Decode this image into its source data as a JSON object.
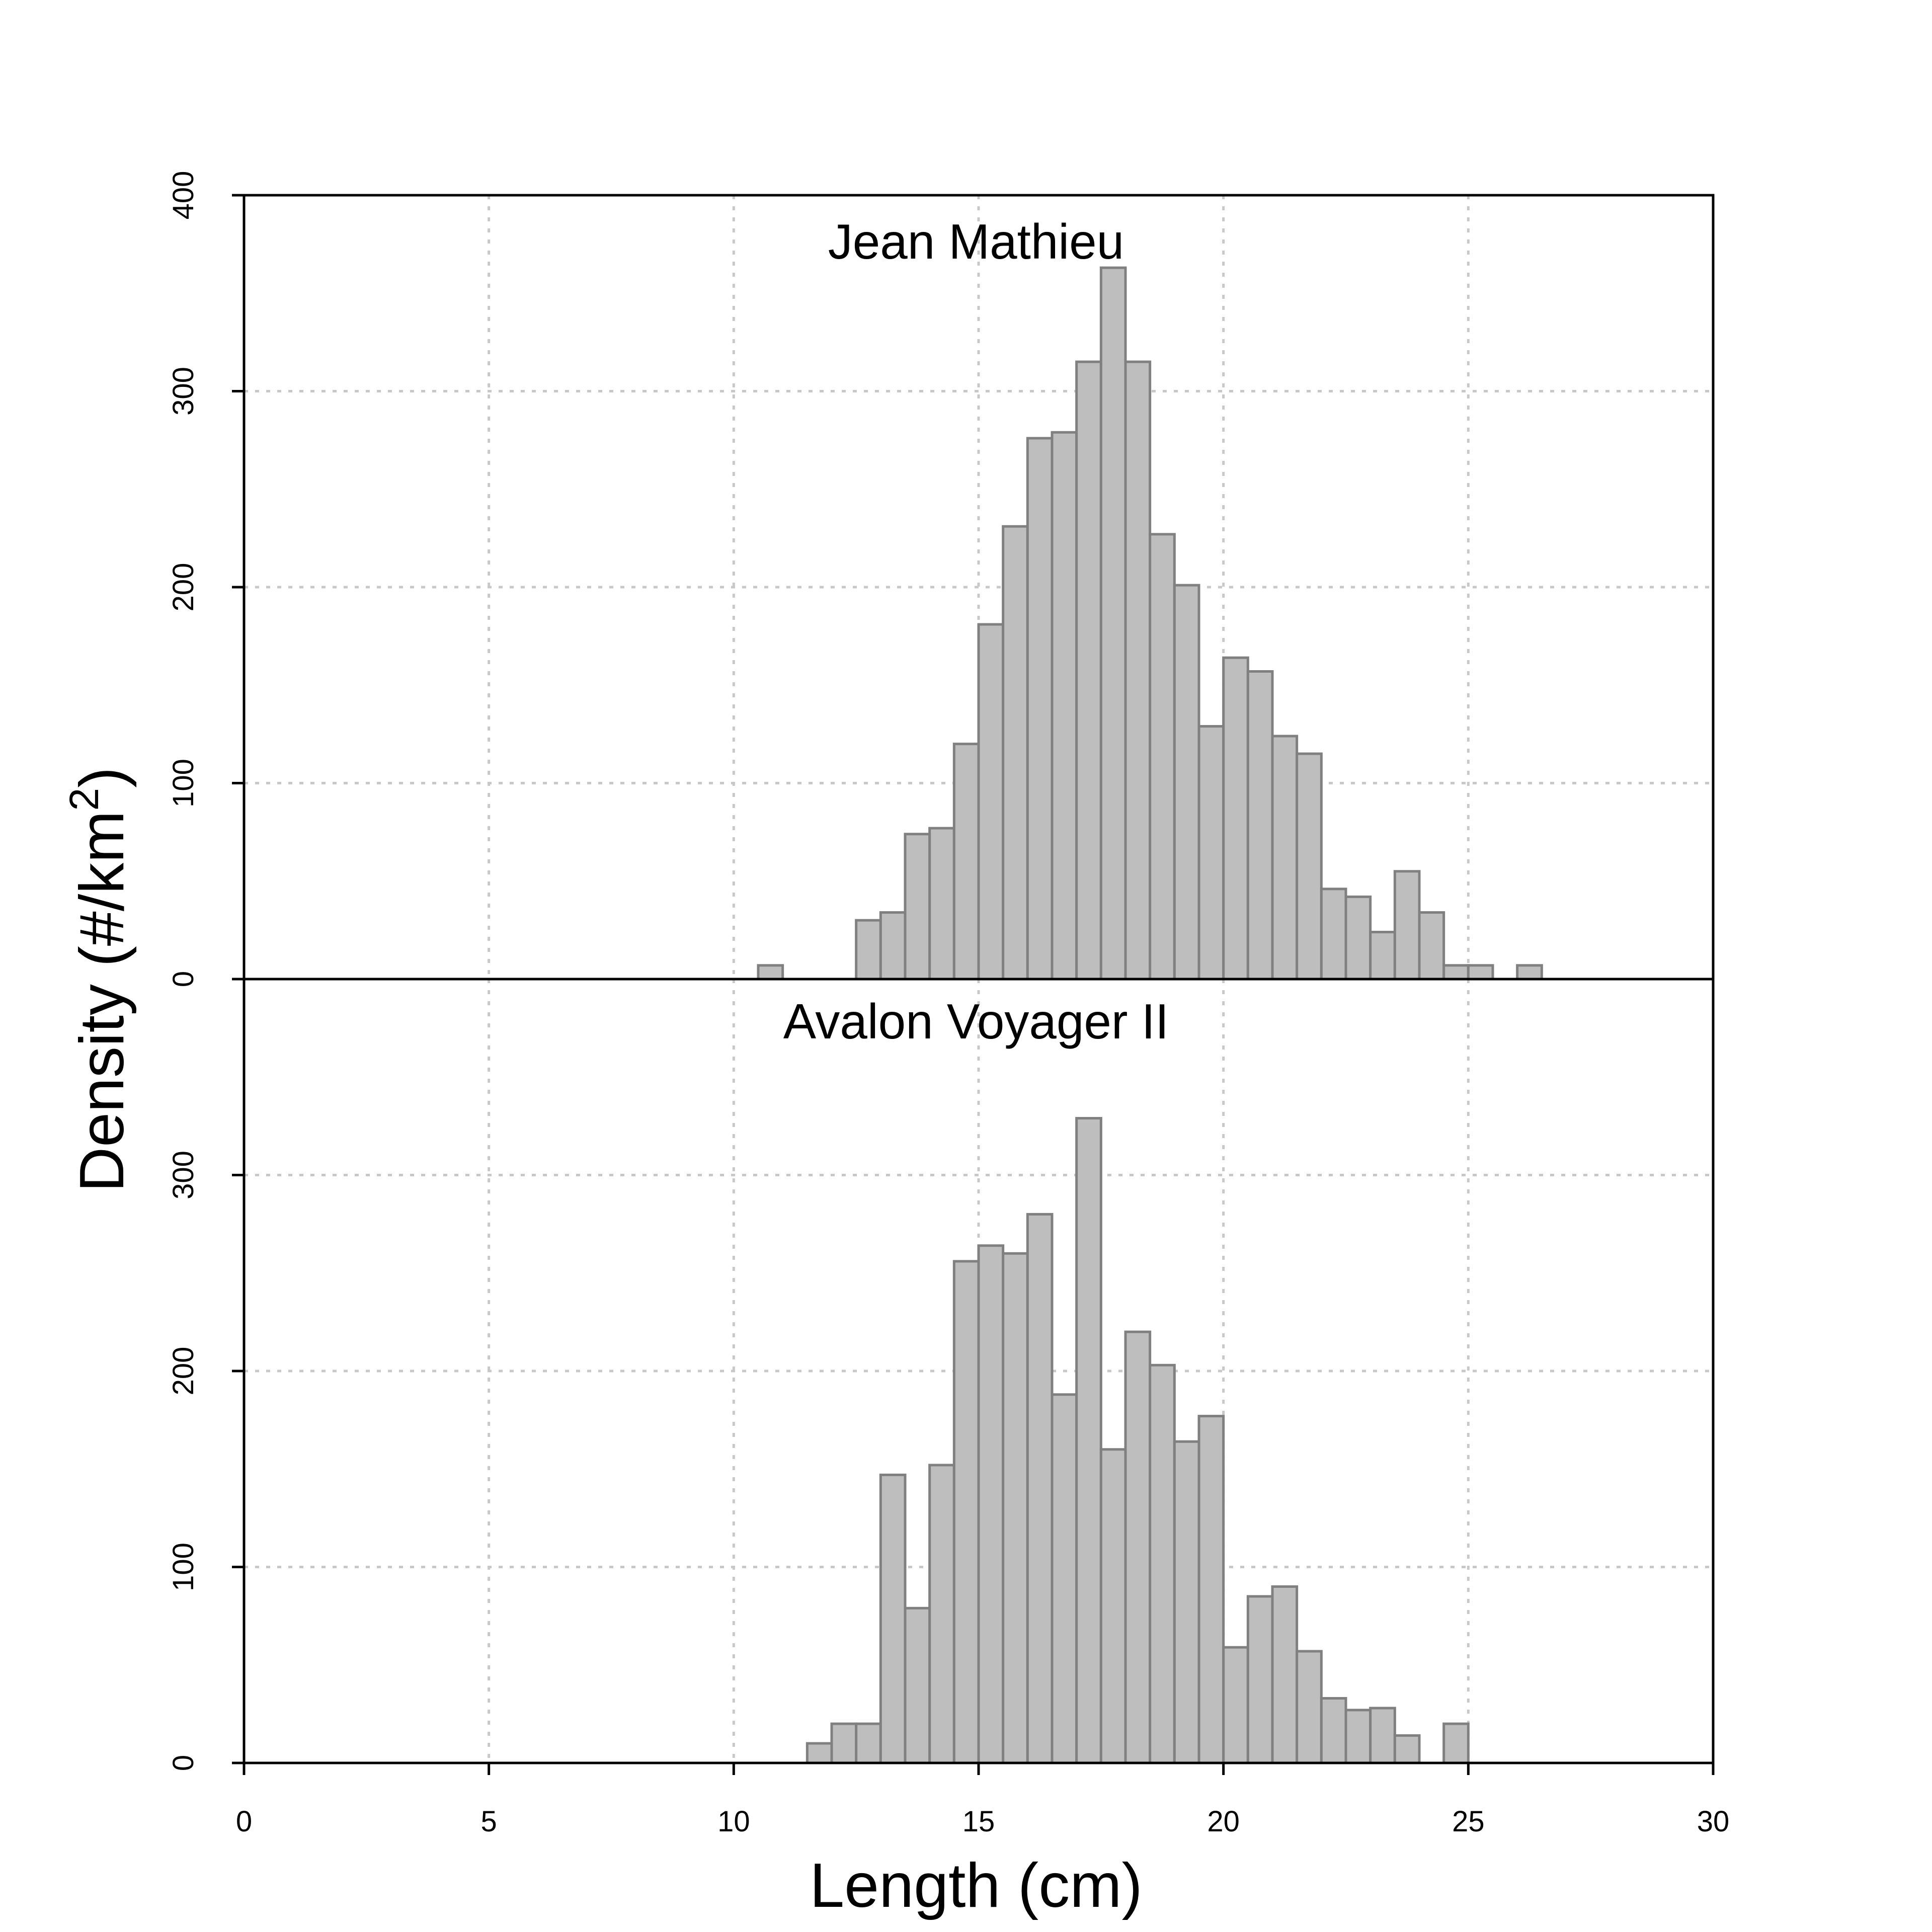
{
  "chart_data": {
    "type": "bar",
    "xlabel": "Length (cm)",
    "ylabel": {
      "prefix": "Density (#/km",
      "superscript": "2",
      "suffix": ")"
    },
    "xlim": [
      0,
      30
    ],
    "x_ticks": [
      0,
      5,
      10,
      15,
      20,
      25,
      30
    ],
    "grid": true,
    "bin_width": 0.5,
    "bar_fill": "#bebebe",
    "bar_stroke": "#808080",
    "grid_color": "#c8c8c8",
    "panels": [
      {
        "title": "Jean Mathieu",
        "ylim": [
          0,
          400
        ],
        "y_ticks": [
          0,
          100,
          200,
          300,
          400
        ],
        "bins": [
          {
            "x": 10.75,
            "y": 7
          },
          {
            "x": 12.75,
            "y": 30
          },
          {
            "x": 13.25,
            "y": 34
          },
          {
            "x": 13.75,
            "y": 74
          },
          {
            "x": 14.25,
            "y": 77
          },
          {
            "x": 14.75,
            "y": 120
          },
          {
            "x": 15.25,
            "y": 181
          },
          {
            "x": 15.75,
            "y": 231
          },
          {
            "x": 16.25,
            "y": 276
          },
          {
            "x": 16.75,
            "y": 279
          },
          {
            "x": 17.25,
            "y": 315
          },
          {
            "x": 17.75,
            "y": 363
          },
          {
            "x": 18.25,
            "y": 315
          },
          {
            "x": 18.75,
            "y": 227
          },
          {
            "x": 19.25,
            "y": 201
          },
          {
            "x": 19.75,
            "y": 129
          },
          {
            "x": 20.25,
            "y": 164
          },
          {
            "x": 20.75,
            "y": 157
          },
          {
            "x": 21.25,
            "y": 124
          },
          {
            "x": 21.75,
            "y": 115
          },
          {
            "x": 22.25,
            "y": 46
          },
          {
            "x": 22.75,
            "y": 42
          },
          {
            "x": 23.25,
            "y": 24
          },
          {
            "x": 23.75,
            "y": 55
          },
          {
            "x": 24.25,
            "y": 34
          },
          {
            "x": 24.75,
            "y": 7
          },
          {
            "x": 25.25,
            "y": 7
          },
          {
            "x": 26.25,
            "y": 7
          }
        ]
      },
      {
        "title": "Avalon Voyager II",
        "ylim": [
          0,
          400
        ],
        "y_ticks": [
          0,
          100,
          200,
          300
        ],
        "bins": [
          {
            "x": 11.75,
            "y": 10
          },
          {
            "x": 12.25,
            "y": 20
          },
          {
            "x": 12.75,
            "y": 20
          },
          {
            "x": 13.25,
            "y": 147
          },
          {
            "x": 13.75,
            "y": 79
          },
          {
            "x": 14.25,
            "y": 152
          },
          {
            "x": 14.75,
            "y": 256
          },
          {
            "x": 15.25,
            "y": 264
          },
          {
            "x": 15.75,
            "y": 260
          },
          {
            "x": 16.25,
            "y": 280
          },
          {
            "x": 16.75,
            "y": 188
          },
          {
            "x": 17.25,
            "y": 329
          },
          {
            "x": 17.75,
            "y": 160
          },
          {
            "x": 18.25,
            "y": 220
          },
          {
            "x": 18.75,
            "y": 203
          },
          {
            "x": 19.25,
            "y": 164
          },
          {
            "x": 19.75,
            "y": 177
          },
          {
            "x": 20.25,
            "y": 59
          },
          {
            "x": 20.75,
            "y": 85
          },
          {
            "x": 21.25,
            "y": 90
          },
          {
            "x": 21.75,
            "y": 57
          },
          {
            "x": 22.25,
            "y": 33
          },
          {
            "x": 22.75,
            "y": 27
          },
          {
            "x": 23.25,
            "y": 28
          },
          {
            "x": 23.75,
            "y": 14
          },
          {
            "x": 24.75,
            "y": 20
          }
        ]
      }
    ]
  }
}
